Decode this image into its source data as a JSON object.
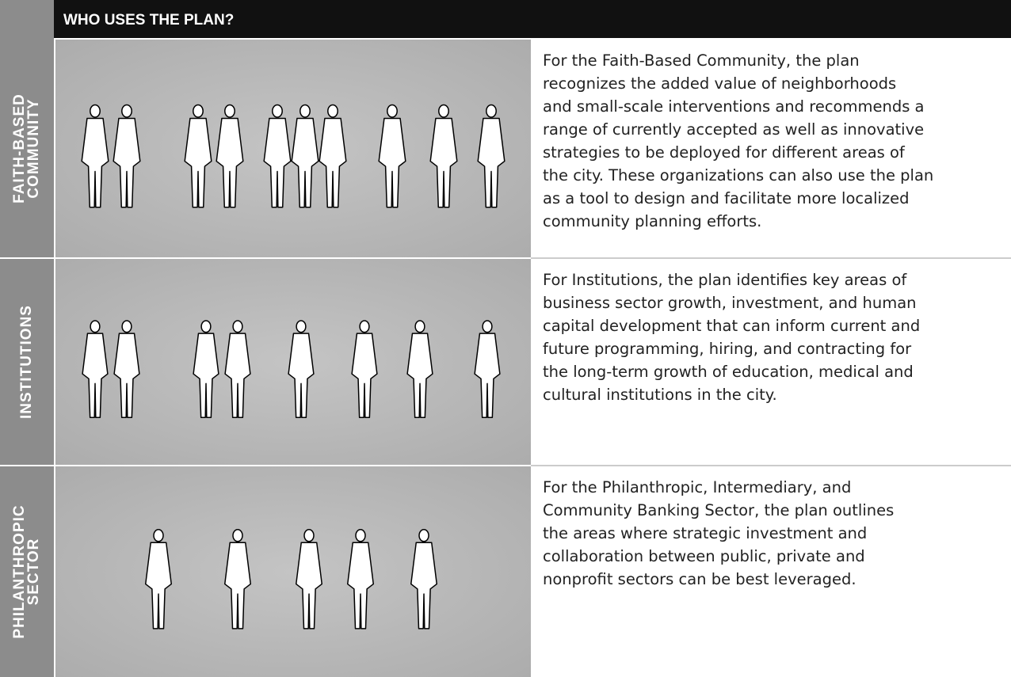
{
  "header": {
    "title": "WHO USES THE PLAN?"
  },
  "rows": [
    {
      "label": [
        "FAITH-BASED",
        "COMMUNITY"
      ],
      "text": [
        "For the Faith-Based Community, the plan",
        "recognizes the added value of neighborhoods",
        "and small-scale interventions and recommends a",
        "range of currently accepted as well as innovative",
        "strategies to be deployed for different areas of",
        "the city. These organizations can also use the plan",
        "as a tool to design and facilitate more localized",
        "community planning efforts."
      ]
    },
    {
      "label": [
        "INSTITUTIONS"
      ],
      "text": [
        "For Institutions, the plan identifies key areas of",
        "business sector growth, investment, and human",
        "capital development that can inform current and",
        "future programming, hiring, and contracting for",
        "the long-term growth of education, medical and",
        "cultural institutions in the city."
      ]
    },
    {
      "label": [
        "PHILANTHROPIC",
        "SECTOR"
      ],
      "text": [
        "For the Philanthropic, Intermediary, and",
        "Community Banking Sector, the plan outlines",
        "the areas where strategic investment and",
        "collaboration between public, private and",
        "nonprofit sectors can be best leveraged."
      ]
    }
  ]
}
